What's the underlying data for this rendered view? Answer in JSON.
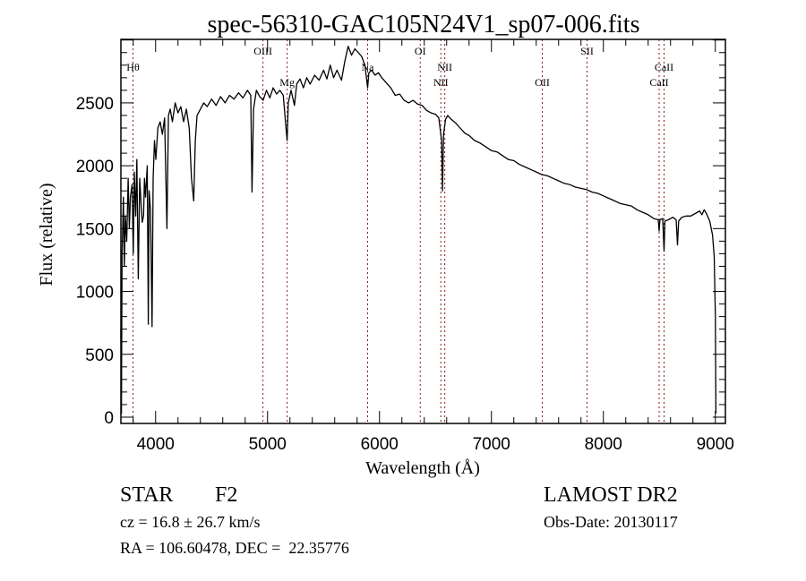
{
  "chart_data": {
    "type": "line",
    "title": "spec-56310-GAC105N24V1_sp07-006.fits",
    "xlabel": "Wavelength (Å)",
    "ylabel": "Flux (relative)",
    "xlim": [
      3690,
      9090
    ],
    "ylim": [
      -50,
      3005
    ],
    "grid": false,
    "legend": "none",
    "x_ticks": [
      4000,
      5000,
      6000,
      7000,
      8000,
      9000
    ],
    "x_tick_labels": [
      "4000",
      "5000",
      "6000",
      "7000",
      "8000",
      "9000"
    ],
    "x_minor_step": 200,
    "y_ticks": [
      0,
      500,
      1000,
      1500,
      2000,
      2500
    ],
    "y_tick_labels": [
      "0",
      "500",
      "1000",
      "1500",
      "2000",
      "2500"
    ],
    "y_minor_step": 100,
    "line_color": "#000000",
    "marker_color": "#8b1a1a",
    "lines": [
      {
        "label": "Hθ",
        "wavelength": 3798,
        "row": 2
      },
      {
        "label": "OIII",
        "wavelength": 4959,
        "row": 1
      },
      {
        "label": "Mg",
        "wavelength": 5175,
        "row": 3
      },
      {
        "label": "Na",
        "wavelength": 5894,
        "row": 2
      },
      {
        "label": "OI",
        "wavelength": 6364,
        "row": 1
      },
      {
        "label": "NII",
        "wavelength": 6548,
        "row": 3
      },
      {
        "label": "NII",
        "wavelength": 6583,
        "row": 2
      },
      {
        "label": "OII",
        "wavelength": 7454,
        "row": 3
      },
      {
        "label": "SII",
        "wavelength": 7854,
        "row": 1
      },
      {
        "label": "CaII",
        "wavelength": 8498,
        "row": 3
      },
      {
        "label": "CaII",
        "wavelength": 8542,
        "row": 2
      }
    ],
    "series": [
      {
        "name": "flux",
        "points": [
          [
            3690,
            700
          ],
          [
            3695,
            30
          ],
          [
            3700,
            1300
          ],
          [
            3712,
            1750
          ],
          [
            3720,
            1200
          ],
          [
            3730,
            1600
          ],
          [
            3742,
            1400
          ],
          [
            3755,
            1900
          ],
          [
            3765,
            1500
          ],
          [
            3775,
            1750
          ],
          [
            3790,
            1850
          ],
          [
            3800,
            1300
          ],
          [
            3810,
            1950
          ],
          [
            3822,
            1600
          ],
          [
            3832,
            2050
          ],
          [
            3845,
            1100
          ],
          [
            3858,
            1900
          ],
          [
            3870,
            1700
          ],
          [
            3880,
            1550
          ],
          [
            3892,
            1600
          ],
          [
            3900,
            1900
          ],
          [
            3910,
            1750
          ],
          [
            3925,
            2000
          ],
          [
            3935,
            740
          ],
          [
            3942,
            1800
          ],
          [
            3955,
            1650
          ],
          [
            3968,
            720
          ],
          [
            3978,
            1900
          ],
          [
            3990,
            2200
          ],
          [
            4002,
            2050
          ],
          [
            4020,
            2300
          ],
          [
            4040,
            2350
          ],
          [
            4060,
            2250
          ],
          [
            4080,
            2380
          ],
          [
            4101,
            1500
          ],
          [
            4115,
            2400
          ],
          [
            4130,
            2450
          ],
          [
            4150,
            2350
          ],
          [
            4175,
            2500
          ],
          [
            4200,
            2420
          ],
          [
            4225,
            2470
          ],
          [
            4250,
            2350
          ],
          [
            4275,
            2450
          ],
          [
            4300,
            2300
          ],
          [
            4320,
            1900
          ],
          [
            4340,
            1720
          ],
          [
            4355,
            2200
          ],
          [
            4370,
            2400
          ],
          [
            4400,
            2450
          ],
          [
            4430,
            2500
          ],
          [
            4460,
            2470
          ],
          [
            4500,
            2530
          ],
          [
            4540,
            2480
          ],
          [
            4580,
            2550
          ],
          [
            4620,
            2500
          ],
          [
            4660,
            2560
          ],
          [
            4700,
            2530
          ],
          [
            4740,
            2580
          ],
          [
            4780,
            2540
          ],
          [
            4820,
            2600
          ],
          [
            4850,
            2560
          ],
          [
            4861,
            1790
          ],
          [
            4875,
            2450
          ],
          [
            4900,
            2600
          ],
          [
            4930,
            2550
          ],
          [
            4960,
            2520
          ],
          [
            4990,
            2600
          ],
          [
            5020,
            2540
          ],
          [
            5050,
            2620
          ],
          [
            5080,
            2570
          ],
          [
            5110,
            2600
          ],
          [
            5140,
            2560
          ],
          [
            5167,
            2280
          ],
          [
            5175,
            2200
          ],
          [
            5185,
            2500
          ],
          [
            5210,
            2600
          ],
          [
            5240,
            2480
          ],
          [
            5260,
            2650
          ],
          [
            5290,
            2690
          ],
          [
            5320,
            2620
          ],
          [
            5350,
            2700
          ],
          [
            5380,
            2650
          ],
          [
            5420,
            2720
          ],
          [
            5460,
            2680
          ],
          [
            5500,
            2760
          ],
          [
            5530,
            2690
          ],
          [
            5560,
            2800
          ],
          [
            5590,
            2700
          ],
          [
            5620,
            2760
          ],
          [
            5660,
            2680
          ],
          [
            5690,
            2830
          ],
          [
            5720,
            2950
          ],
          [
            5750,
            2880
          ],
          [
            5780,
            2930
          ],
          [
            5810,
            2900
          ],
          [
            5840,
            2870
          ],
          [
            5870,
            2800
          ],
          [
            5894,
            2620
          ],
          [
            5905,
            2740
          ],
          [
            5930,
            2760
          ],
          [
            5960,
            2720
          ],
          [
            5990,
            2740
          ],
          [
            6020,
            2700
          ],
          [
            6060,
            2660
          ],
          [
            6100,
            2620
          ],
          [
            6140,
            2560
          ],
          [
            6180,
            2570
          ],
          [
            6220,
            2520
          ],
          [
            6260,
            2500
          ],
          [
            6300,
            2520
          ],
          [
            6340,
            2490
          ],
          [
            6380,
            2480
          ],
          [
            6420,
            2440
          ],
          [
            6460,
            2420
          ],
          [
            6500,
            2410
          ],
          [
            6530,
            2380
          ],
          [
            6555,
            2200
          ],
          [
            6563,
            1800
          ],
          [
            6572,
            2250
          ],
          [
            6590,
            2370
          ],
          [
            6610,
            2400
          ],
          [
            6640,
            2370
          ],
          [
            6680,
            2340
          ],
          [
            6720,
            2300
          ],
          [
            6760,
            2260
          ],
          [
            6800,
            2240
          ],
          [
            6850,
            2200
          ],
          [
            6900,
            2180
          ],
          [
            6950,
            2150
          ],
          [
            7000,
            2120
          ],
          [
            7050,
            2110
          ],
          [
            7100,
            2080
          ],
          [
            7150,
            2050
          ],
          [
            7200,
            2040
          ],
          [
            7250,
            2010
          ],
          [
            7300,
            1990
          ],
          [
            7350,
            1970
          ],
          [
            7400,
            1950
          ],
          [
            7450,
            1930
          ],
          [
            7500,
            1920
          ],
          [
            7550,
            1900
          ],
          [
            7600,
            1880
          ],
          [
            7650,
            1860
          ],
          [
            7700,
            1850
          ],
          [
            7750,
            1830
          ],
          [
            7800,
            1820
          ],
          [
            7850,
            1810
          ],
          [
            7900,
            1790
          ],
          [
            7950,
            1780
          ],
          [
            8000,
            1760
          ],
          [
            8050,
            1740
          ],
          [
            8100,
            1720
          ],
          [
            8150,
            1700
          ],
          [
            8200,
            1690
          ],
          [
            8250,
            1680
          ],
          [
            8300,
            1650
          ],
          [
            8350,
            1630
          ],
          [
            8400,
            1610
          ],
          [
            8450,
            1580
          ],
          [
            8490,
            1570
          ],
          [
            8498,
            1480
          ],
          [
            8505,
            1570
          ],
          [
            8530,
            1580
          ],
          [
            8542,
            1320
          ],
          [
            8550,
            1560
          ],
          [
            8580,
            1570
          ],
          [
            8620,
            1590
          ],
          [
            8650,
            1570
          ],
          [
            8662,
            1370
          ],
          [
            8672,
            1560
          ],
          [
            8700,
            1590
          ],
          [
            8740,
            1600
          ],
          [
            8780,
            1600
          ],
          [
            8820,
            1620
          ],
          [
            8860,
            1640
          ],
          [
            8880,
            1610
          ],
          [
            8900,
            1650
          ],
          [
            8920,
            1620
          ],
          [
            8950,
            1560
          ],
          [
            8975,
            1450
          ],
          [
            8990,
            1280
          ],
          [
            9000,
            800
          ],
          [
            9005,
            30
          ]
        ]
      }
    ]
  },
  "info": {
    "object_class": "STAR",
    "subclass": "F2",
    "redshift_line": "cz = 16.8 ± 26.7 km/s",
    "coords_line": "RA = 106.60478, DEC =  22.35776",
    "survey": "LAMOST DR2",
    "obs_date": "Obs-Date: 20130117"
  }
}
